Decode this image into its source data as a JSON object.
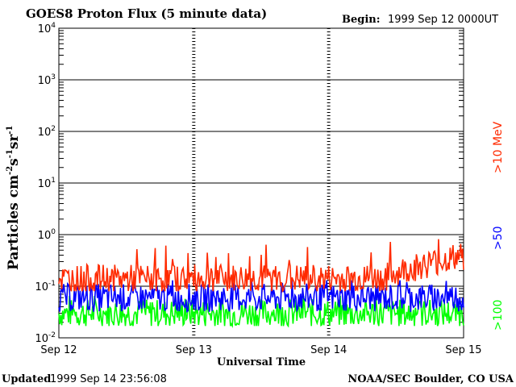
{
  "header": {
    "title": "GOES8 Proton Flux (5 minute data)",
    "begin_label": "Begin:",
    "begin_value": "1999 Sep 12 0000UT"
  },
  "footer": {
    "updated_label": "Updated",
    "updated_value": "1999 Sep 14 23:56:08",
    "credit": "NOAA/SEC Boulder, CO USA"
  },
  "chart_data": {
    "type": "line",
    "title": "GOES8 Proton Flux (5 minute data)",
    "xlabel": "Universal Time",
    "ylabel_main": "Particles cm",
    "ylabel_units": [
      {
        "base": "s",
        "exp": "-1"
      },
      {
        "base": "sr",
        "exp": "-1"
      }
    ],
    "ylabel_exp_cm": "-2",
    "y_scale": "log",
    "ylim": [
      0.01,
      10000
    ],
    "y_ticks": [
      {
        "base": "10",
        "exp": "4",
        "value": 10000
      },
      {
        "base": "10",
        "exp": "3",
        "value": 1000
      },
      {
        "base": "10",
        "exp": "2",
        "value": 100
      },
      {
        "base": "10",
        "exp": "1",
        "value": 10
      },
      {
        "base": "10",
        "exp": "0",
        "value": 1
      },
      {
        "base": "10",
        "exp": "-1",
        "value": 0.1
      },
      {
        "base": "10",
        "exp": "-2",
        "value": 0.01
      }
    ],
    "x_ticks": [
      "Sep 12",
      "Sep 13",
      "Sep 14",
      "Sep 15"
    ],
    "xlim_days": [
      0,
      3
    ],
    "grid": "horizontal at decades",
    "legend": "right side, vertical",
    "series": [
      {
        "name": ">10 MeV",
        "color": "#ff2a00",
        "typical": 0.14,
        "range": [
          0.08,
          0.95
        ],
        "trend": "rising to ~0.3 on Sep 14"
      },
      {
        "name": ">50",
        "color": "#0000ff",
        "typical": 0.06,
        "range": [
          0.03,
          0.13
        ]
      },
      {
        "name": ">100",
        "color": "#00ff00",
        "typical": 0.03,
        "range": [
          0.017,
          0.065
        ]
      }
    ]
  }
}
